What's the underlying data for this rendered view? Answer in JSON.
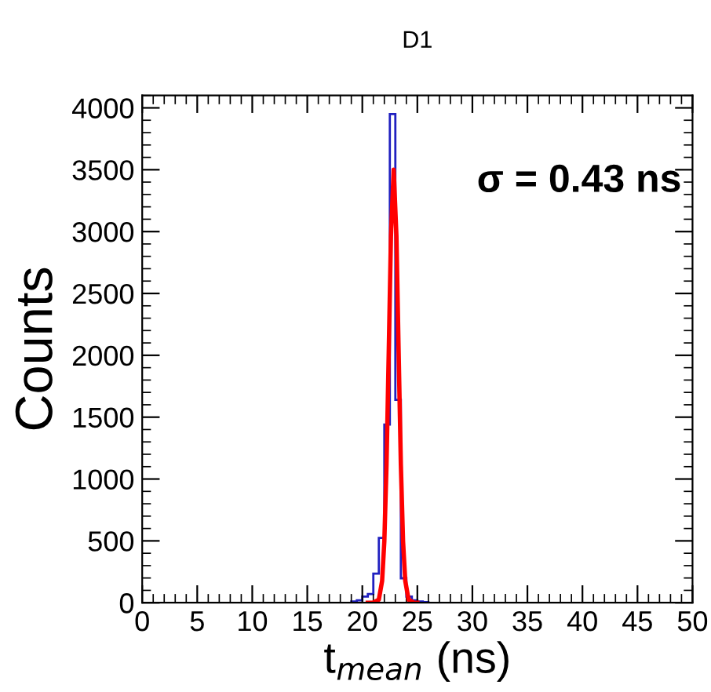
{
  "chart_data": {
    "type": "histogram",
    "title": "D1",
    "xlabel": "t$_{mean}$ (ns)",
    "ylabel": "Counts",
    "bins": [
      19,
      19.5,
      20,
      20.5,
      21,
      21.5,
      22,
      22.5,
      23,
      23.5,
      24,
      24.5,
      25,
      25.5,
      26
    ],
    "values": [
      10,
      20,
      50,
      70,
      235,
      524,
      1440,
      3950,
      1640,
      198,
      50,
      20,
      10,
      5
    ],
    "color": "#2020c0",
    "series": [
      {
        "type": "line",
        "color": "#ff0000",
        "x": [
          20.5,
          21.0,
          21.5,
          21.8,
          22.0,
          22.2,
          22.4,
          22.6,
          22.85,
          23.1,
          23.3,
          23.5,
          23.7,
          23.9,
          24.2,
          24.7,
          25.0
        ],
        "values": [
          0,
          1,
          25,
          178,
          497,
          1120,
          2025,
          2960,
          3500,
          2960,
          2025,
          1120,
          497,
          178,
          25,
          0,
          0
        ]
      }
    ],
    "annotations": [
      "σ = 0.43 ns"
    ],
    "xlim": [
      0,
      50
    ],
    "xticks": [
      0,
      5,
      10,
      15,
      20,
      25,
      30,
      35,
      40,
      45,
      50
    ],
    "ylim": [
      0,
      4100
    ],
    "yticks": [
      0,
      500,
      1000,
      1500,
      2000,
      2500,
      3000,
      3500,
      4000
    ],
    "grid": false,
    "legend": false
  }
}
